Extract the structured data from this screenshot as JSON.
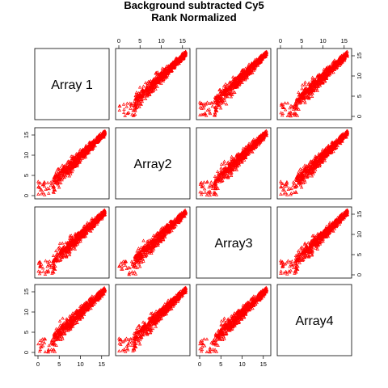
{
  "chart_data": {
    "type": "scatter",
    "title": "Background subtracted Cy5",
    "subtitle": "Rank Normalized",
    "arrays": [
      "Array 1",
      "Array2",
      "Array3",
      "Array4"
    ],
    "xlim": [
      0,
      16
    ],
    "ylim": [
      0,
      16
    ],
    "ticks": [
      0,
      5,
      10,
      15
    ],
    "point_color": "#ff0000",
    "marker": "^",
    "grid": false,
    "panels": [
      {
        "row": 1,
        "col": 2,
        "x_array": "Array2",
        "y_array": "Array 1"
      },
      {
        "row": 1,
        "col": 3,
        "x_array": "Array3",
        "y_array": "Array 1"
      },
      {
        "row": 1,
        "col": 4,
        "x_array": "Array4",
        "y_array": "Array 1"
      },
      {
        "row": 2,
        "col": 1,
        "x_array": "Array 1",
        "y_array": "Array2"
      },
      {
        "row": 2,
        "col": 3,
        "x_array": "Array3",
        "y_array": "Array2"
      },
      {
        "row": 2,
        "col": 4,
        "x_array": "Array4",
        "y_array": "Array2"
      },
      {
        "row": 3,
        "col": 1,
        "x_array": "Array 1",
        "y_array": "Array3"
      },
      {
        "row": 3,
        "col": 2,
        "x_array": "Array2",
        "y_array": "Array3"
      },
      {
        "row": 3,
        "col": 4,
        "x_array": "Array4",
        "y_array": "Array3"
      },
      {
        "row": 4,
        "col": 1,
        "x_array": "Array 1",
        "y_array": "Array4"
      },
      {
        "row": 4,
        "col": 2,
        "x_array": "Array2",
        "y_array": "Array4"
      },
      {
        "row": 4,
        "col": 3,
        "x_array": "Array3",
        "y_array": "Array4"
      }
    ]
  }
}
